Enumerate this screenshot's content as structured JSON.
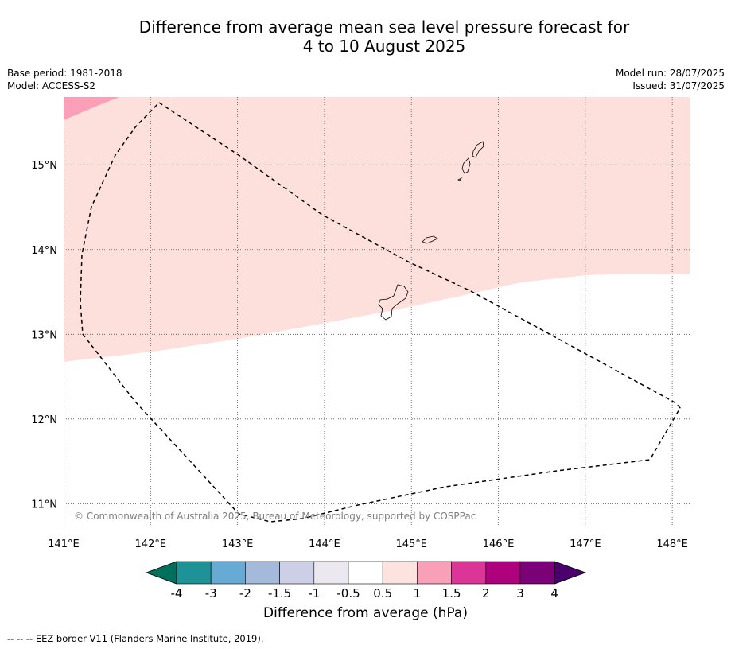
{
  "header": {
    "title_line1": "Difference from average mean sea level pressure forecast for",
    "title_line2": "4 to 10 August 2025",
    "base_period": "Base period: 1981-2018",
    "model": "Model: ACCESS-S2",
    "model_run": "Model run: 28/07/2025",
    "issued": "Issued: 31/07/2025"
  },
  "map": {
    "lon_range": [
      141.0,
      148.2
    ],
    "lat_range": [
      10.75,
      15.8
    ],
    "lon_ticks": [
      141,
      142,
      143,
      144,
      145,
      146,
      147,
      148
    ],
    "lon_labels": [
      "141°E",
      "142°E",
      "143°E",
      "144°E",
      "145°E",
      "146°E",
      "147°E",
      "148°E"
    ],
    "lat_ticks": [
      11,
      12,
      13,
      14,
      15
    ],
    "lat_labels": [
      "11°N",
      "12°N",
      "13°N",
      "14°N",
      "15°N"
    ],
    "grid": "dotted",
    "copyright": "© Commonwealth of Australia 2025, Bureau of Meteorology, supported by COSPPac",
    "fill_colors": {
      "band_0_5_to_1": "#fde0dc",
      "band_1_to_1_5": "#f9a0b8",
      "ocean_neutral": "#ffffff"
    }
  },
  "colorbar": {
    "labels": [
      "-4",
      "-3",
      "-2",
      "-1.5",
      "-1",
      "-0.5",
      "0.5",
      "1",
      "1.5",
      "2",
      "3",
      "4"
    ],
    "colors": [
      "#00705c",
      "#1e9296",
      "#67aad3",
      "#a4badb",
      "#cdcfe6",
      "#ebe9ef",
      "#ffffff",
      "#fde3df",
      "#f8a0b8",
      "#dc3598",
      "#ae017e",
      "#7a0177",
      "#49006a"
    ],
    "label": "Difference from average (hPa)"
  },
  "legend": {
    "eez": "--  --  -- EEZ border V11 (Flanders Marine Institute, 2019)."
  }
}
